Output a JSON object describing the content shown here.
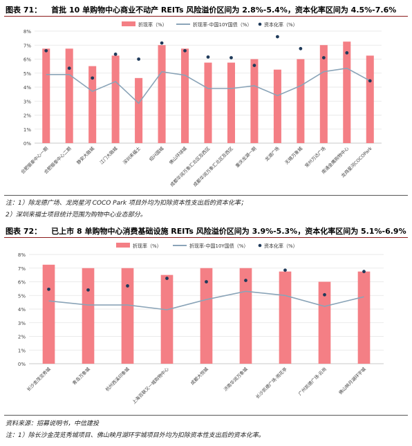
{
  "chart_data": [
    {
      "type": "bar",
      "figure_label": "图表 71：",
      "title": "首批 10 单购物中心商业不动产 REITs 风险溢价区间为 2.8%-5.4%，资本化率区间为 4.5%-7.6%",
      "legend": [
        "折现率（%）",
        "折现率-中国10Y国债（%）",
        "资本化率（%）"
      ],
      "legend_position": "top",
      "colors": {
        "bar": "#f47f85",
        "line": "#8aa4b8",
        "dot": "#1f3a5a"
      },
      "ylim": [
        0,
        8
      ],
      "yticks": [
        "0%",
        "1%",
        "2%",
        "3%",
        "4%",
        "5%",
        "6%",
        "7%",
        "8%"
      ],
      "categories": [
        "合肥银泰中心一期",
        "合肥银泰中心二期",
        "静安大融城",
        "江门大融城",
        "深圳来福士",
        "绍兴国城",
        "佛山环球城",
        "成都华润万象汇北区及西区",
        "成都华润万象汇北区及西区",
        "重庆龙湖一期",
        "龙湖广场",
        "无锡万象城",
        "常州万达广场",
        "南通金鹰购物中心",
        "龙岗星河COCOPark"
      ],
      "series": [
        {
          "name": "折现率（%）",
          "type": "bar",
          "values": [
            6.75,
            6.75,
            5.5,
            6.25,
            4.65,
            7.0,
            6.75,
            5.75,
            5.75,
            6.0,
            5.25,
            6.0,
            7.0,
            7.25,
            6.25
          ]
        },
        {
          "name": "折现率-中国10Y国债（%）",
          "type": "line",
          "values": [
            4.9,
            4.9,
            3.7,
            4.4,
            2.85,
            5.1,
            4.85,
            3.9,
            3.9,
            4.1,
            3.4,
            4.1,
            5.1,
            5.35,
            4.45
          ]
        },
        {
          "name": "资本化率（%）",
          "type": "scatter",
          "values": [
            6.6,
            5.35,
            4.65,
            6.35,
            6.0,
            7.15,
            6.6,
            6.15,
            6.1,
            5.55,
            7.6,
            6.75,
            6.1,
            6.45,
            4.45
          ]
        }
      ]
    },
    {
      "type": "bar",
      "figure_label": "图表 72：",
      "title": "已上市 8 单购物中心消费基础设施 REITs 风险溢价区间为 3.9%-5.3%，资本化率区间为 5.1%-6.9%",
      "legend": [
        "折现率（%）",
        "折现率-中国10Y国债（%）",
        "资本化率（%）"
      ],
      "legend_position": "top",
      "colors": {
        "bar": "#f47f85",
        "line": "#8aa4b8",
        "dot": "#1f3a5a"
      },
      "ylim": [
        0,
        8
      ],
      "yticks": [
        "0%",
        "1%",
        "2%",
        "3%",
        "4%",
        "5%",
        "6%",
        "7%",
        "8%"
      ],
      "categories": [
        "长沙金茂览秀城",
        "青岛万象城",
        "杭州西溪印象城",
        "上海百联又一城购物中心",
        "成都大悦城",
        "济南华润万象城",
        "长沙凯德广场·雨花亭",
        "广州凯德广场·云尚",
        "佛山映月湖环宇城"
      ],
      "series": [
        {
          "name": "折现率（%）",
          "type": "bar",
          "values": [
            7.25,
            7.0,
            7.0,
            6.5,
            7.0,
            7.0,
            6.75,
            6.0,
            6.75
          ]
        },
        {
          "name": "折现率-中国10Y国债（%）",
          "type": "line",
          "values": [
            4.6,
            4.3,
            4.3,
            3.95,
            4.7,
            5.3,
            5.0,
            4.2,
            4.9
          ]
        },
        {
          "name": "资本化率（%）",
          "type": "scatter",
          "values": [
            5.45,
            5.4,
            5.7,
            6.25,
            6.0,
            6.1,
            6.85,
            5.05,
            6.75
          ]
        }
      ]
    }
  ],
  "notes": {
    "note71_1": "注：1）除龙德广场、龙岗星河 COCO Park 项目外均为扣除资本性支出后的资本化率；",
    "note71_2": "2）深圳来福士项目统计范围为购物中心业态部分。",
    "source": "资料来源：招募说明书，中信建投",
    "note72_1": "注：1）除长沙金茂览秀城项目、佛山映月湖环宇城项目外均为扣除资本性支出后的资本化率。"
  }
}
